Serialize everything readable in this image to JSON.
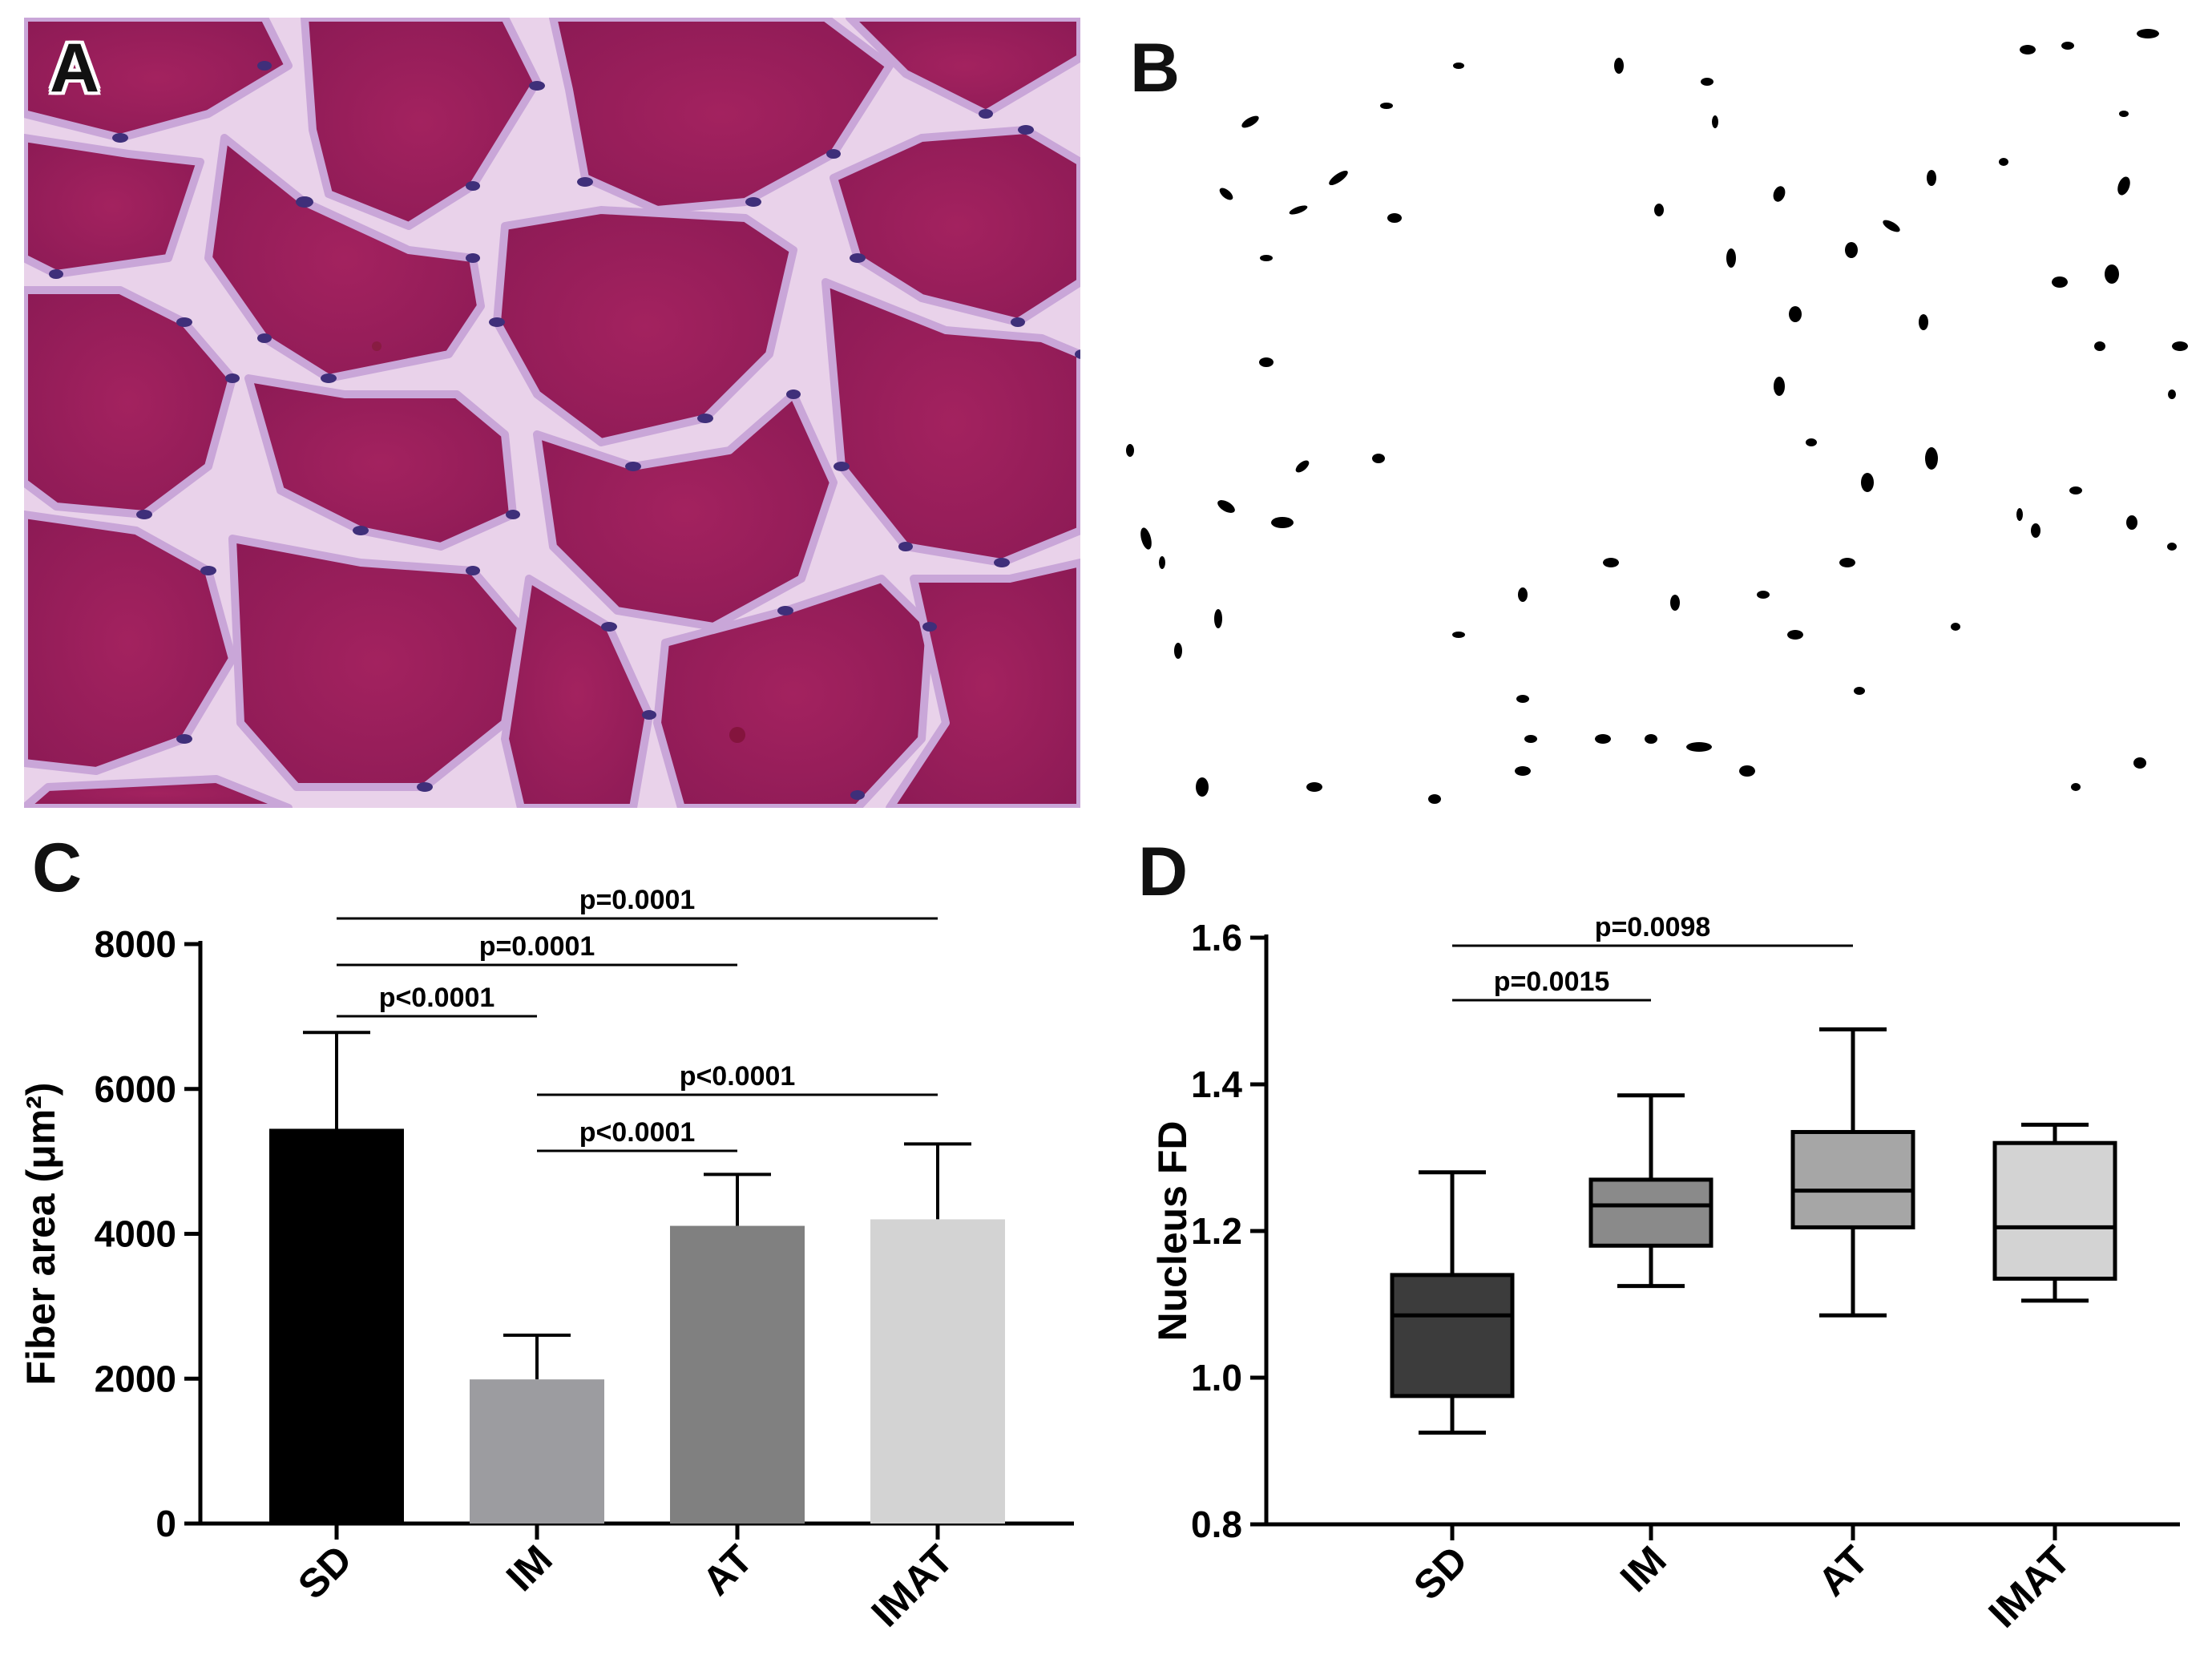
{
  "panels": {
    "a": {
      "label": "A"
    },
    "b": {
      "label": "B"
    },
    "c": {
      "label": "C"
    },
    "d": {
      "label": "D"
    }
  },
  "chart_data": [
    {
      "panel": "C",
      "type": "bar",
      "categories": [
        "SD",
        "IM",
        "AT",
        "IMAT"
      ],
      "values": [
        5450,
        1990,
        4110,
        4200
      ],
      "error_upper": [
        6780,
        2600,
        4820,
        5240
      ],
      "colors": [
        "#000000",
        "#9c9ca0",
        "#808080",
        "#d3d3d3"
      ],
      "ylabel": "Fiber area (μm²)",
      "ylim": [
        0,
        8000
      ],
      "yticks": [
        0,
        2000,
        4000,
        6000,
        8000
      ],
      "ytick_labels": [
        "0",
        "2000",
        "4000",
        "6000",
        "8000"
      ],
      "brackets": [
        {
          "from": "SD",
          "to": "IMAT",
          "label": "p=0.0001"
        },
        {
          "from": "SD",
          "to": "AT",
          "label": "p=0.0001"
        },
        {
          "from": "SD",
          "to": "IM",
          "label": "p<0.0001"
        },
        {
          "from": "IM",
          "to": "IMAT",
          "label": "p<0.0001"
        },
        {
          "from": "IM",
          "to": "AT",
          "label": "p<0.0001"
        }
      ]
    },
    {
      "panel": "D",
      "type": "box",
      "categories": [
        "SD",
        "IM",
        "AT",
        "IMAT"
      ],
      "boxes": [
        {
          "min": 0.925,
          "q1": 0.975,
          "median": 1.085,
          "q3": 1.14,
          "max": 1.28
        },
        {
          "min": 1.125,
          "q1": 1.18,
          "median": 1.235,
          "q3": 1.27,
          "max": 1.385
        },
        {
          "min": 1.085,
          "q1": 1.205,
          "median": 1.255,
          "q3": 1.335,
          "max": 1.475
        },
        {
          "min": 1.105,
          "q1": 1.135,
          "median": 1.205,
          "q3": 1.32,
          "max": 1.345
        }
      ],
      "colors": [
        "#3c3c3c",
        "#8a8a8a",
        "#a6a6a6",
        "#d3d3d3"
      ],
      "ylabel": "Nucleus FD",
      "ylim": [
        0.8,
        1.6
      ],
      "yticks": [
        0.8,
        1.0,
        1.2,
        1.4,
        1.6
      ],
      "ytick_labels": [
        "0.8",
        "1.0",
        "1.2",
        "1.4",
        "1.6"
      ],
      "brackets": [
        {
          "from": "SD",
          "to": "AT",
          "label": "p=0.0098"
        },
        {
          "from": "SD",
          "to": "IM",
          "label": "p=0.0015"
        }
      ]
    }
  ]
}
